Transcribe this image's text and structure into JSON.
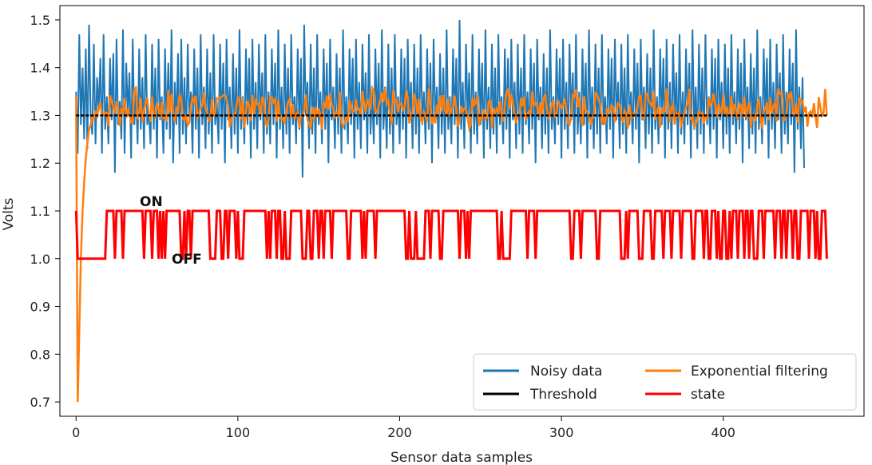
{
  "chart_data": {
    "type": "line",
    "xlabel": "Sensor data samples",
    "ylabel": "Volts",
    "xlim": [
      -10,
      487
    ],
    "ylim": [
      0.67,
      1.53
    ],
    "x_ticks": [
      0,
      100,
      200,
      300,
      400
    ],
    "y_ticks": [
      0.7,
      0.8,
      0.9,
      1.0,
      1.1,
      1.2,
      1.3,
      1.4,
      1.5
    ],
    "grid": false,
    "legend_placement": "lower-right",
    "annotations": [
      {
        "text": "ON",
        "x": 35,
        "y": 1.115
      },
      {
        "text": "OFF",
        "x": 58,
        "y": 0.99
      }
    ],
    "series": [
      {
        "name": "Noisy data",
        "color": "#1f77b4",
        "n_samples": 465,
        "values": [
          1.35,
          1.22,
          1.47,
          1.28,
          1.4,
          1.25,
          1.44,
          1.23,
          1.49,
          1.3,
          1.26,
          1.45,
          1.24,
          1.38,
          1.31,
          1.42,
          1.22,
          1.47,
          1.27,
          1.34,
          1.24,
          1.42,
          1.29,
          1.43,
          1.18,
          1.46,
          1.28,
          1.33,
          1.25,
          1.48,
          1.22,
          1.41,
          1.3,
          1.39,
          1.21,
          1.46,
          1.28,
          1.36,
          1.24,
          1.44,
          1.27,
          1.38,
          1.23,
          1.47,
          1.28,
          1.31,
          1.24,
          1.45,
          1.27,
          1.4,
          1.21,
          1.46,
          1.29,
          1.34,
          1.22,
          1.44,
          1.27,
          1.41,
          1.25,
          1.48,
          1.2,
          1.37,
          1.28,
          1.43,
          1.22,
          1.46,
          1.26,
          1.38,
          1.24,
          1.45,
          1.29,
          1.35,
          1.22,
          1.44,
          1.27,
          1.4,
          1.21,
          1.47,
          1.28,
          1.36,
          1.23,
          1.44,
          1.26,
          1.39,
          1.22,
          1.47,
          1.28,
          1.33,
          1.24,
          1.45,
          1.27,
          1.41,
          1.2,
          1.46,
          1.29,
          1.36,
          1.23,
          1.43,
          1.26,
          1.4,
          1.22,
          1.48,
          1.27,
          1.34,
          1.24,
          1.44,
          1.28,
          1.42,
          1.21,
          1.46,
          1.27,
          1.37,
          1.23,
          1.45,
          1.29,
          1.39,
          1.22,
          1.47,
          1.26,
          1.35,
          1.24,
          1.44,
          1.28,
          1.41,
          1.21,
          1.48,
          1.27,
          1.36,
          1.23,
          1.45,
          1.26,
          1.4,
          1.22,
          1.47,
          1.28,
          1.34,
          1.24,
          1.44,
          1.27,
          1.42,
          1.17,
          1.49,
          1.3,
          1.37,
          1.23,
          1.45,
          1.26,
          1.4,
          1.22,
          1.47,
          1.28,
          1.35,
          1.24,
          1.44,
          1.27,
          1.41,
          1.2,
          1.46,
          1.29,
          1.36,
          1.23,
          1.43,
          1.26,
          1.4,
          1.22,
          1.48,
          1.27,
          1.34,
          1.24,
          1.44,
          1.28,
          1.42,
          1.21,
          1.46,
          1.27,
          1.37,
          1.23,
          1.45,
          1.29,
          1.39,
          1.22,
          1.47,
          1.26,
          1.35,
          1.24,
          1.44,
          1.28,
          1.41,
          1.21,
          1.48,
          1.27,
          1.36,
          1.23,
          1.45,
          1.26,
          1.4,
          1.22,
          1.47,
          1.28,
          1.34,
          1.24,
          1.44,
          1.27,
          1.42,
          1.21,
          1.46,
          1.29,
          1.37,
          1.23,
          1.45,
          1.26,
          1.4,
          1.22,
          1.47,
          1.28,
          1.35,
          1.24,
          1.44,
          1.27,
          1.41,
          1.2,
          1.46,
          1.29,
          1.36,
          1.23,
          1.43,
          1.26,
          1.4,
          1.22,
          1.48,
          1.27,
          1.34,
          1.24,
          1.44,
          1.28,
          1.42,
          1.21,
          1.5,
          1.27,
          1.37,
          1.23,
          1.45,
          1.29,
          1.39,
          1.22,
          1.47,
          1.26,
          1.35,
          1.24,
          1.44,
          1.28,
          1.41,
          1.21,
          1.48,
          1.27,
          1.36,
          1.23,
          1.45,
          1.26,
          1.4,
          1.22,
          1.47,
          1.28,
          1.34,
          1.24,
          1.44,
          1.27,
          1.42,
          1.21,
          1.46,
          1.29,
          1.37,
          1.23,
          1.45,
          1.26,
          1.4,
          1.22,
          1.47,
          1.28,
          1.35,
          1.24,
          1.44,
          1.27,
          1.41,
          1.2,
          1.46,
          1.29,
          1.36,
          1.23,
          1.43,
          1.26,
          1.4,
          1.22,
          1.48,
          1.27,
          1.34,
          1.24,
          1.44,
          1.28,
          1.42,
          1.21,
          1.46,
          1.27,
          1.37,
          1.23,
          1.45,
          1.29,
          1.39,
          1.22,
          1.47,
          1.26,
          1.35,
          1.24,
          1.44,
          1.28,
          1.41,
          1.21,
          1.48,
          1.27,
          1.36,
          1.23,
          1.45,
          1.26,
          1.4,
          1.22,
          1.47,
          1.28,
          1.34,
          1.24,
          1.44,
          1.27,
          1.42,
          1.21,
          1.46,
          1.29,
          1.37,
          1.23,
          1.45,
          1.26,
          1.4,
          1.22,
          1.47,
          1.28,
          1.35,
          1.24,
          1.44,
          1.27,
          1.41,
          1.2,
          1.46,
          1.29,
          1.36,
          1.23,
          1.43,
          1.26,
          1.4,
          1.22,
          1.48,
          1.27,
          1.34,
          1.24,
          1.44,
          1.28,
          1.42,
          1.21,
          1.46,
          1.27,
          1.37,
          1.23,
          1.45,
          1.29,
          1.39,
          1.22,
          1.47,
          1.26,
          1.35,
          1.24,
          1.44,
          1.28,
          1.41,
          1.21,
          1.48,
          1.27,
          1.36,
          1.23,
          1.45,
          1.26,
          1.4,
          1.22,
          1.47,
          1.28,
          1.34,
          1.24,
          1.44,
          1.27,
          1.42,
          1.21,
          1.46,
          1.29,
          1.37,
          1.23,
          1.45,
          1.26,
          1.4,
          1.22,
          1.47,
          1.28,
          1.35,
          1.24,
          1.44,
          1.27,
          1.41,
          1.2,
          1.46,
          1.29,
          1.36,
          1.23,
          1.43,
          1.26,
          1.4,
          1.22,
          1.48,
          1.27,
          1.34,
          1.24,
          1.44,
          1.28,
          1.42,
          1.21,
          1.46,
          1.27,
          1.37,
          1.23,
          1.45,
          1.29,
          1.39,
          1.22,
          1.47,
          1.26,
          1.35,
          1.24,
          1.44,
          1.28,
          1.41,
          1.18,
          1.48,
          1.27,
          1.36,
          1.23,
          1.38,
          1.19
        ]
      },
      {
        "name": "Exponential filtering",
        "color": "#ff7f0e",
        "n_samples": 465,
        "start": [
          1.34,
          0.7,
          0.85,
          1.0,
          1.1,
          1.16,
          1.21,
          1.24,
          1.27,
          1.28,
          1.3,
          1.29,
          1.31,
          1.3
        ],
        "level": 1.315,
        "ripple": 0.035
      },
      {
        "name": "Threshold",
        "color": "#000000",
        "constant": 1.3,
        "x_range": [
          0,
          464
        ]
      },
      {
        "name": "state",
        "color": "#ff0000",
        "start": [
          1.1,
          1.0,
          1.0,
          1.0,
          1.0,
          1.0,
          1.0,
          1.0,
          1.0,
          1.0,
          1.0,
          1.0,
          1.0,
          1.0,
          1.0,
          1.0,
          1.0,
          1.0,
          1.0,
          1.1
        ],
        "on": 1.1,
        "off": 1.0,
        "n_samples": 465
      }
    ],
    "legend": [
      {
        "label": "Noisy data",
        "color": "#1f77b4"
      },
      {
        "label": "Exponential filtering",
        "color": "#ff7f0e"
      },
      {
        "label": "Threshold",
        "color": "#000000"
      },
      {
        "label": "state",
        "color": "#ff0000"
      }
    ]
  }
}
